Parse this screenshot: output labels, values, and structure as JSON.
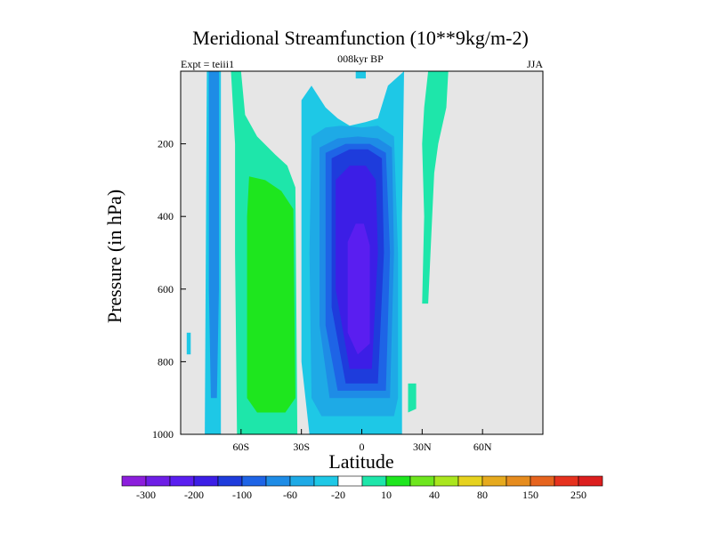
{
  "chart_data": {
    "type": "filled-contour",
    "title": "Meridional Streamfunction (10**9kg/m-2)",
    "subtitle_left": "Expt = teiii1",
    "subtitle_center": "008kyr BP",
    "subtitle_right": "JJA",
    "xlabel": "Latitude",
    "ylabel": "Pressure (in hPa)",
    "x_ticks": [
      {
        "value": -60,
        "label": "60S"
      },
      {
        "value": -30,
        "label": "30S"
      },
      {
        "value": 0,
        "label": "0"
      },
      {
        "value": 30,
        "label": "30N"
      },
      {
        "value": 60,
        "label": "60N"
      }
    ],
    "y_ticks": [
      {
        "value": 200,
        "label": "200"
      },
      {
        "value": 400,
        "label": "400"
      },
      {
        "value": 600,
        "label": "600"
      },
      {
        "value": 800,
        "label": "800"
      },
      {
        "value": 1000,
        "label": "1000"
      }
    ],
    "xlim": [
      -90,
      90
    ],
    "ylim": [
      1000,
      0
    ],
    "background_color": "#e6e6e6",
    "colorbar": {
      "colors": [
        "#8c1edc",
        "#6e1ee6",
        "#5a1ef0",
        "#3c1ee6",
        "#1e3cdc",
        "#1e64e6",
        "#1e8ce6",
        "#1eaae6",
        "#1ec8e6",
        "#ffffff",
        "#1ee6aa",
        "#1ee61e",
        "#6ee61e",
        "#aae61e",
        "#e6d21e",
        "#e6aa1e",
        "#e68c1e",
        "#e6641e",
        "#e6321e",
        "#dc1e1e"
      ],
      "labels": [
        {
          "after": 1,
          "text": "-300"
        },
        {
          "after": 3,
          "text": "-200"
        },
        {
          "after": 5,
          "text": "-100"
        },
        {
          "after": 7,
          "text": "-60"
        },
        {
          "after": 9,
          "text": "-20"
        },
        {
          "after": 11,
          "text": "10"
        },
        {
          "after": 13,
          "text": "40"
        },
        {
          "after": 15,
          "text": "80"
        },
        {
          "after": 17,
          "text": "150"
        },
        {
          "after": 19,
          "text": "250"
        }
      ]
    },
    "regions": [
      {
        "name": "sh-cyan-band",
        "level": "-20",
        "color": "#1ec8e6",
        "points": [
          [
            -77,
            0
          ],
          [
            -70,
            0
          ],
          [
            -70,
            1000
          ],
          [
            -78,
            1000
          ]
        ]
      },
      {
        "name": "sh-blue-cell",
        "level": "-60",
        "color": "#1e8ce6",
        "points": [
          [
            -76,
            0
          ],
          [
            -71,
            0
          ],
          [
            -71,
            600
          ],
          [
            -72,
            900
          ],
          [
            -75,
            900
          ],
          [
            -76,
            600
          ]
        ]
      },
      {
        "name": "sh-green-band",
        "level": "10",
        "color": "#1ee6aa",
        "points": [
          [
            -65,
            0
          ],
          [
            -60,
            0
          ],
          [
            -58,
            120
          ],
          [
            -52,
            180
          ],
          [
            -43,
            230
          ],
          [
            -37,
            260
          ],
          [
            -33,
            320
          ],
          [
            -32,
            1000
          ],
          [
            -62,
            1000
          ],
          [
            -63,
            500
          ],
          [
            -63,
            200
          ]
        ]
      },
      {
        "name": "sh-green-cell",
        "level": "40",
        "color": "#1ee61e",
        "points": [
          [
            -56,
            290
          ],
          [
            -48,
            300
          ],
          [
            -40,
            330
          ],
          [
            -34,
            380
          ],
          [
            -33,
            900
          ],
          [
            -38,
            940
          ],
          [
            -52,
            940
          ],
          [
            -57,
            900
          ],
          [
            -57,
            400
          ]
        ]
      },
      {
        "name": "main-cyan",
        "level": "-20",
        "color": "#1ec8e6",
        "points": [
          [
            -30,
            80
          ],
          [
            -25,
            40
          ],
          [
            -18,
            100
          ],
          [
            -12,
            130
          ],
          [
            -6,
            150
          ],
          [
            2,
            140
          ],
          [
            8,
            130
          ],
          [
            13,
            40
          ],
          [
            21,
            0
          ],
          [
            20,
            400
          ],
          [
            20,
            1000
          ],
          [
            -26,
            1000
          ],
          [
            -30,
            800
          ]
        ]
      },
      {
        "name": "main-l2",
        "level": "-40",
        "color": "#1eaae6",
        "points": [
          [
            -25,
            180
          ],
          [
            -18,
            155
          ],
          [
            -10,
            150
          ],
          [
            0,
            155
          ],
          [
            8,
            150
          ],
          [
            16,
            180
          ],
          [
            18,
            500
          ],
          [
            18,
            900
          ],
          [
            16,
            950
          ],
          [
            -20,
            950
          ],
          [
            -25,
            900
          ],
          [
            -26,
            500
          ]
        ]
      },
      {
        "name": "main-l3",
        "level": "-60",
        "color": "#1e8ce6",
        "points": [
          [
            -21,
            210
          ],
          [
            -12,
            185
          ],
          [
            -2,
            180
          ],
          [
            8,
            185
          ],
          [
            15,
            210
          ],
          [
            16,
            500
          ],
          [
            14,
            900
          ],
          [
            -16,
            900
          ],
          [
            -21,
            700
          ]
        ]
      },
      {
        "name": "main-l4",
        "level": "-80",
        "color": "#1e64e6",
        "points": [
          [
            -18,
            225
          ],
          [
            -8,
            200
          ],
          [
            4,
            200
          ],
          [
            12,
            225
          ],
          [
            14,
            500
          ],
          [
            12,
            880
          ],
          [
            -12,
            880
          ],
          [
            -18,
            700
          ]
        ]
      },
      {
        "name": "main-l5",
        "level": "-100",
        "color": "#1e3cdc",
        "points": [
          [
            -15,
            240
          ],
          [
            -6,
            215
          ],
          [
            3,
            215
          ],
          [
            10,
            240
          ],
          [
            11,
            500
          ],
          [
            8,
            860
          ],
          [
            -8,
            860
          ],
          [
            -15,
            650
          ]
        ]
      },
      {
        "name": "main-l6",
        "level": "-150",
        "color": "#3c1ee6",
        "points": [
          [
            -13,
            300
          ],
          [
            -6,
            260
          ],
          [
            2,
            260
          ],
          [
            7,
            300
          ],
          [
            8,
            500
          ],
          [
            5,
            820
          ],
          [
            -6,
            820
          ],
          [
            -13,
            600
          ]
        ]
      },
      {
        "name": "main-l7",
        "level": "-200",
        "color": "#5a1ef0",
        "points": [
          [
            -7,
            470
          ],
          [
            -3,
            420
          ],
          [
            1,
            420
          ],
          [
            4,
            480
          ],
          [
            4,
            750
          ],
          [
            -2,
            780
          ],
          [
            -7,
            720
          ]
        ]
      },
      {
        "name": "tropical-cyan-strip",
        "level": "-20",
        "color": "#1ec8e6",
        "points": [
          [
            -3,
            0
          ],
          [
            2,
            0
          ],
          [
            2,
            20
          ],
          [
            -3,
            20
          ]
        ]
      },
      {
        "name": "nh-green-strip",
        "level": "10",
        "color": "#1ee6aa",
        "points": [
          [
            33,
            0
          ],
          [
            43,
            0
          ],
          [
            42,
            100
          ],
          [
            38,
            200
          ],
          [
            36,
            280
          ],
          [
            35,
            400
          ],
          [
            33,
            640
          ],
          [
            30,
            640
          ],
          [
            31,
            400
          ],
          [
            30,
            200
          ],
          [
            31,
            100
          ]
        ]
      },
      {
        "name": "nh-small-cell",
        "level": "10",
        "color": "#1ee6aa",
        "points": [
          [
            23,
            860
          ],
          [
            27,
            860
          ],
          [
            27,
            930
          ],
          [
            23,
            940
          ]
        ]
      },
      {
        "name": "sh-cyan-wisp",
        "level": "-20",
        "color": "#1ec8e6",
        "points": [
          [
            -87,
            720
          ],
          [
            -85,
            720
          ],
          [
            -85,
            780
          ],
          [
            -87,
            780
          ]
        ]
      }
    ]
  }
}
